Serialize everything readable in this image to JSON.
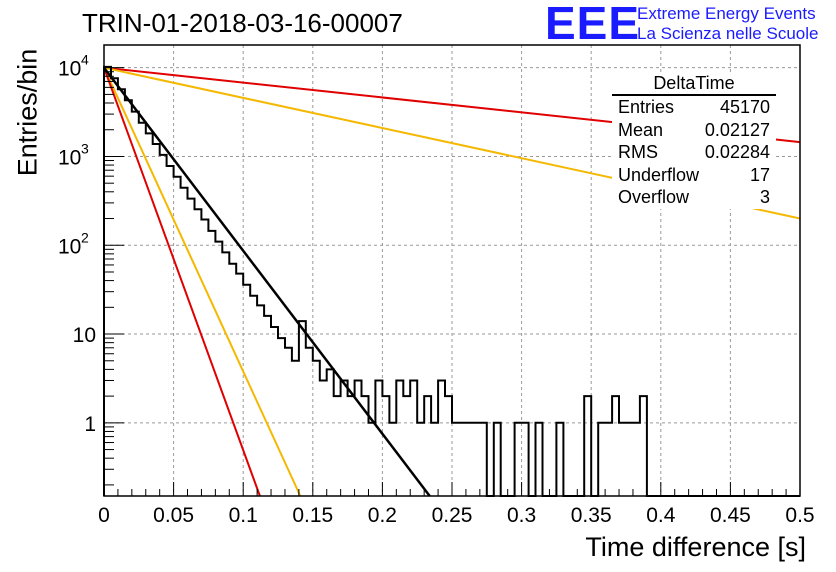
{
  "title": "TRIN-01-2018-03-16-00007",
  "logo": {
    "text": "EEE",
    "line1": "Extreme Energy Events",
    "line2": "La Scienza nelle Scuole"
  },
  "stats": {
    "title": "DeltaTime",
    "rows": [
      {
        "label": "Entries",
        "value": "45170"
      },
      {
        "label": "Mean",
        "value": "0.02127"
      },
      {
        "label": "RMS",
        "value": "0.02284"
      },
      {
        "label": "Underflow",
        "value": "17"
      },
      {
        "label": "Overflow",
        "value": "3"
      }
    ]
  },
  "colors": {
    "histogram": "#000000",
    "red": "#e00000",
    "orange": "#f5b800",
    "fit": "#000000",
    "grid": "#9a9a9a"
  },
  "chart_data": {
    "type": "line",
    "xlabel": "Time difference [s]",
    "ylabel": "Entries/bin",
    "xlim": [
      0,
      0.5
    ],
    "ylim": [
      0.15,
      18000
    ],
    "yscale": "log",
    "grid": true,
    "legend": "top-right",
    "xticks": [
      "0",
      "0.05",
      "0.1",
      "0.15",
      "0.2",
      "0.25",
      "0.3",
      "0.35",
      "0.4",
      "0.45",
      "0.5"
    ],
    "yticks": [
      {
        "value": 1,
        "label": "1"
      },
      {
        "value": 10,
        "label": "10"
      },
      {
        "value": 100,
        "label": "10",
        "exp": "2"
      },
      {
        "value": 1000,
        "label": "10",
        "exp": "3"
      },
      {
        "value": 10000,
        "label": "10",
        "exp": "4"
      }
    ],
    "histogram": {
      "bin_width": 0.005,
      "values": [
        10200,
        7600,
        5700,
        4300,
        3200,
        2400,
        1820,
        1380,
        1040,
        780,
        590,
        445,
        335,
        255,
        195,
        145,
        110,
        83,
        62,
        48,
        36,
        27,
        21,
        16,
        12,
        9,
        7,
        5,
        14,
        7,
        5,
        3,
        4,
        2,
        3,
        2,
        3,
        2,
        1,
        3,
        2,
        1,
        3,
        2,
        3,
        1,
        2,
        1,
        3,
        2,
        1,
        1,
        1,
        1,
        1,
        0,
        1,
        0,
        0,
        1,
        1,
        0,
        1,
        0,
        0,
        1,
        0,
        0,
        0,
        2,
        0,
        1,
        1,
        2,
        1,
        1,
        1,
        2,
        0,
        0,
        0,
        0,
        0,
        0,
        0,
        0,
        0,
        0,
        0,
        0,
        0,
        0,
        0,
        0,
        0,
        0,
        0,
        0,
        0,
        0
      ]
    },
    "series": [
      {
        "color": "red",
        "points": [
          [
            0,
            10000
          ],
          [
            0.5,
            1450
          ]
        ]
      },
      {
        "color": "orange",
        "points": [
          [
            0,
            10000
          ],
          [
            0.5,
            200
          ]
        ]
      },
      {
        "color": "orange",
        "points": [
          [
            0,
            10000
          ],
          [
            0.141,
            0.15
          ]
        ]
      },
      {
        "color": "red",
        "points": [
          [
            0,
            10000
          ],
          [
            0.112,
            0.15
          ]
        ]
      },
      {
        "color": "fit",
        "points": [
          [
            0,
            10000
          ],
          [
            0.234,
            0.15
          ]
        ]
      }
    ]
  }
}
